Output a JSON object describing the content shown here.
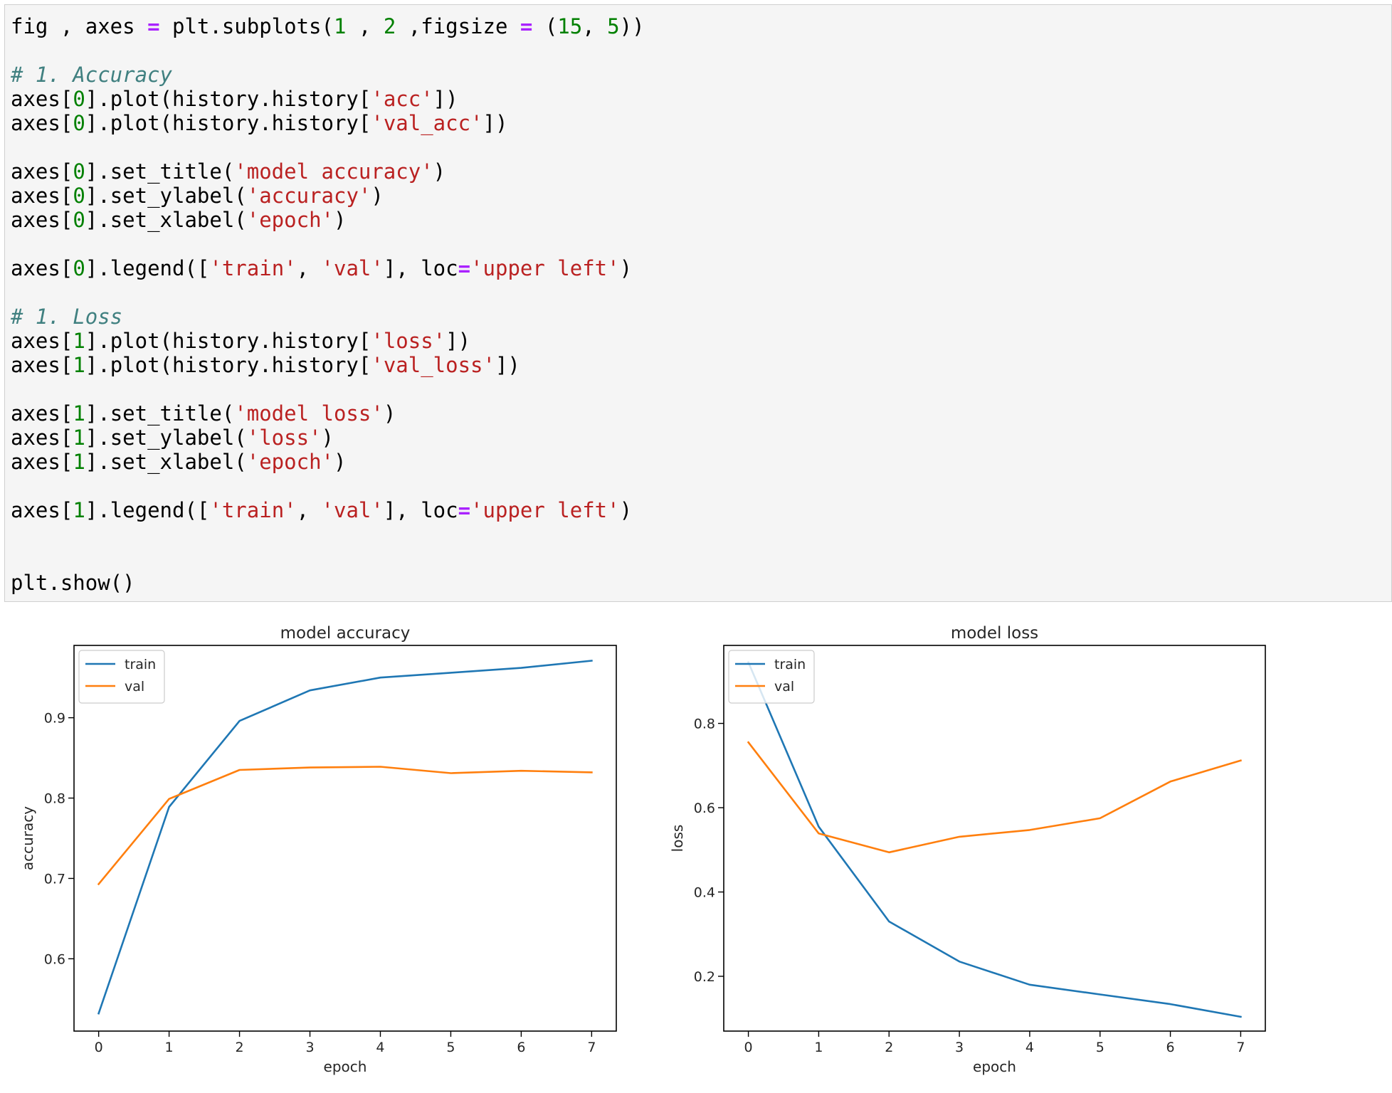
{
  "code_cell": {
    "lines": [
      [
        {
          "t": "fig , axes ",
          "c": "p"
        },
        {
          "t": "=",
          "c": "op"
        },
        {
          "t": " plt.subplots(",
          "c": "p"
        },
        {
          "t": "1",
          "c": "num"
        },
        {
          "t": " , ",
          "c": "p"
        },
        {
          "t": "2",
          "c": "num"
        },
        {
          "t": " ,figsize ",
          "c": "p"
        },
        {
          "t": "=",
          "c": "op"
        },
        {
          "t": " (",
          "c": "p"
        },
        {
          "t": "15",
          "c": "num"
        },
        {
          "t": ", ",
          "c": "p"
        },
        {
          "t": "5",
          "c": "num"
        },
        {
          "t": "))",
          "c": "p"
        }
      ],
      [],
      [
        {
          "t": "# 1. Accuracy",
          "c": "com"
        }
      ],
      [
        {
          "t": "axes[",
          "c": "p"
        },
        {
          "t": "0",
          "c": "num"
        },
        {
          "t": "].plot(history.history[",
          "c": "p"
        },
        {
          "t": "'acc'",
          "c": "str"
        },
        {
          "t": "])",
          "c": "p"
        }
      ],
      [
        {
          "t": "axes[",
          "c": "p"
        },
        {
          "t": "0",
          "c": "num"
        },
        {
          "t": "].plot(history.history[",
          "c": "p"
        },
        {
          "t": "'val_acc'",
          "c": "str"
        },
        {
          "t": "])",
          "c": "p"
        }
      ],
      [],
      [
        {
          "t": "axes[",
          "c": "p"
        },
        {
          "t": "0",
          "c": "num"
        },
        {
          "t": "].set_title(",
          "c": "p"
        },
        {
          "t": "'model accuracy'",
          "c": "str"
        },
        {
          "t": ")",
          "c": "p"
        }
      ],
      [
        {
          "t": "axes[",
          "c": "p"
        },
        {
          "t": "0",
          "c": "num"
        },
        {
          "t": "].set_ylabel(",
          "c": "p"
        },
        {
          "t": "'accuracy'",
          "c": "str"
        },
        {
          "t": ")",
          "c": "p"
        }
      ],
      [
        {
          "t": "axes[",
          "c": "p"
        },
        {
          "t": "0",
          "c": "num"
        },
        {
          "t": "].set_xlabel(",
          "c": "p"
        },
        {
          "t": "'epoch'",
          "c": "str"
        },
        {
          "t": ")",
          "c": "p"
        }
      ],
      [],
      [
        {
          "t": "axes[",
          "c": "p"
        },
        {
          "t": "0",
          "c": "num"
        },
        {
          "t": "].legend([",
          "c": "p"
        },
        {
          "t": "'train'",
          "c": "str"
        },
        {
          "t": ", ",
          "c": "p"
        },
        {
          "t": "'val'",
          "c": "str"
        },
        {
          "t": "], loc",
          "c": "p"
        },
        {
          "t": "=",
          "c": "op"
        },
        {
          "t": "'upper left'",
          "c": "str"
        },
        {
          "t": ")",
          "c": "p"
        }
      ],
      [],
      [
        {
          "t": "# 1. Loss",
          "c": "com"
        }
      ],
      [
        {
          "t": "axes[",
          "c": "p"
        },
        {
          "t": "1",
          "c": "num"
        },
        {
          "t": "].plot(history.history[",
          "c": "p"
        },
        {
          "t": "'loss'",
          "c": "str"
        },
        {
          "t": "])",
          "c": "p"
        }
      ],
      [
        {
          "t": "axes[",
          "c": "p"
        },
        {
          "t": "1",
          "c": "num"
        },
        {
          "t": "].plot(history.history[",
          "c": "p"
        },
        {
          "t": "'val_loss'",
          "c": "str"
        },
        {
          "t": "])",
          "c": "p"
        }
      ],
      [],
      [
        {
          "t": "axes[",
          "c": "p"
        },
        {
          "t": "1",
          "c": "num"
        },
        {
          "t": "].set_title(",
          "c": "p"
        },
        {
          "t": "'model loss'",
          "c": "str"
        },
        {
          "t": ")",
          "c": "p"
        }
      ],
      [
        {
          "t": "axes[",
          "c": "p"
        },
        {
          "t": "1",
          "c": "num"
        },
        {
          "t": "].set_ylabel(",
          "c": "p"
        },
        {
          "t": "'loss'",
          "c": "str"
        },
        {
          "t": ")",
          "c": "p"
        }
      ],
      [
        {
          "t": "axes[",
          "c": "p"
        },
        {
          "t": "1",
          "c": "num"
        },
        {
          "t": "].set_xlabel(",
          "c": "p"
        },
        {
          "t": "'epoch'",
          "c": "str"
        },
        {
          "t": ")",
          "c": "p"
        }
      ],
      [],
      [
        {
          "t": "axes[",
          "c": "p"
        },
        {
          "t": "1",
          "c": "num"
        },
        {
          "t": "].legend([",
          "c": "p"
        },
        {
          "t": "'train'",
          "c": "str"
        },
        {
          "t": ", ",
          "c": "p"
        },
        {
          "t": "'val'",
          "c": "str"
        },
        {
          "t": "], loc",
          "c": "p"
        },
        {
          "t": "=",
          "c": "op"
        },
        {
          "t": "'upper left'",
          "c": "str"
        },
        {
          "t": ")",
          "c": "p"
        }
      ],
      [],
      [],
      [
        {
          "t": "plt.show()",
          "c": "p"
        }
      ]
    ]
  },
  "chart_data": [
    {
      "type": "line",
      "title": "model accuracy",
      "xlabel": "epoch",
      "ylabel": "accuracy",
      "x": [
        0,
        1,
        2,
        3,
        4,
        5,
        6,
        7
      ],
      "xticks": [
        "0",
        "1",
        "2",
        "3",
        "4",
        "5",
        "6",
        "7"
      ],
      "yticks": [
        0.6,
        0.7,
        0.8,
        0.9
      ],
      "ytick_labels": [
        "0.6",
        "0.7",
        "0.8",
        "0.9"
      ],
      "xlim": [
        -0.35,
        7.35
      ],
      "ylim": [
        0.51,
        0.99
      ],
      "legend": "upper-left",
      "grid": false,
      "series": [
        {
          "name": "train",
          "color": "#1f77b4",
          "values": [
            0.532,
            0.789,
            0.896,
            0.934,
            0.95,
            0.956,
            0.962,
            0.971
          ]
        },
        {
          "name": "val",
          "color": "#ff7f0e",
          "values": [
            0.693,
            0.799,
            0.835,
            0.838,
            0.839,
            0.831,
            0.834,
            0.832
          ]
        }
      ]
    },
    {
      "type": "line",
      "title": "model loss",
      "xlabel": "epoch",
      "ylabel": "loss",
      "x": [
        0,
        1,
        2,
        3,
        4,
        5,
        6,
        7
      ],
      "xticks": [
        "0",
        "1",
        "2",
        "3",
        "4",
        "5",
        "6",
        "7"
      ],
      "yticks": [
        0.2,
        0.4,
        0.6,
        0.8
      ],
      "ytick_labels": [
        "0.2",
        "0.4",
        "0.6",
        "0.8"
      ],
      "xlim": [
        -0.35,
        7.35
      ],
      "ylim": [
        0.07,
        0.985
      ],
      "legend": "upper-left",
      "grid": false,
      "series": [
        {
          "name": "train",
          "color": "#1f77b4",
          "values": [
            0.945,
            0.555,
            0.33,
            0.235,
            0.18,
            0.157,
            0.134,
            0.104
          ]
        },
        {
          "name": "val",
          "color": "#ff7f0e",
          "values": [
            0.755,
            0.539,
            0.494,
            0.531,
            0.547,
            0.575,
            0.662,
            0.712
          ]
        }
      ]
    }
  ]
}
